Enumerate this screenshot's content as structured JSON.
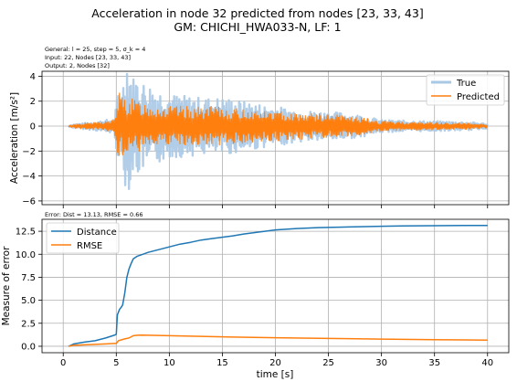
{
  "figure": {
    "title_line1": "Acceleration in node 32 predicted from nodes [23, 33, 43]",
    "title_line2": "GM: CHICHI_HWA033-N, LF: 1"
  },
  "chart_data": [
    {
      "type": "line",
      "info_line1": "General: l = 25, step = 5, σ_k = 4",
      "info_line2": "Input: 22, Nodes [23, 33, 43]",
      "info_line3": "Output: 2, Nodes [32]",
      "ylabel": "Acceleration [m/s²]",
      "xlim": [
        -2,
        42
      ],
      "ylim": [
        -6.3,
        4.4
      ],
      "yticks": [
        "4",
        "2",
        "0",
        "−2",
        "−4",
        "−6"
      ],
      "ytick_values": [
        4,
        2,
        0,
        -2,
        -4,
        -6
      ],
      "grid": true,
      "legend_position": "top-right",
      "series": [
        {
          "name": "True",
          "color": "#a8c8e4",
          "envelope": {
            "t": [
              0.5,
              1,
              2,
              3,
              4,
              4.8,
              5.2,
              5.6,
              6.0,
              6.5,
              7.0,
              7.5,
              8.0,
              8.5,
              9.0,
              10,
              11,
              12,
              13,
              14,
              15,
              16,
              17,
              18,
              19,
              20,
              22,
              24,
              26,
              28,
              30,
              32,
              35,
              38,
              40
            ],
            "amplitude": [
              0.05,
              0.15,
              0.25,
              0.35,
              0.5,
              0.6,
              3.0,
              3.5,
              5.8,
              4.0,
              4.0,
              3.6,
              3.5,
              3.2,
              3.0,
              2.6,
              2.5,
              2.4,
              2.3,
              2.3,
              2.3,
              2.2,
              2.0,
              1.9,
              1.7,
              1.6,
              1.3,
              1.2,
              1.1,
              0.9,
              0.5,
              0.45,
              0.4,
              0.35,
              0.2
            ]
          }
        },
        {
          "name": "Predicted",
          "color": "#ff7f0e",
          "envelope": {
            "t": [
              0.5,
              1,
              2,
              3,
              4,
              4.8,
              5.2,
              5.6,
              6.0,
              6.5,
              7.0,
              7.5,
              8.0,
              8.5,
              9.0,
              10,
              11,
              12,
              13,
              14,
              15,
              16,
              17,
              18,
              19,
              20,
              22,
              24,
              26,
              28,
              30,
              32,
              35,
              38,
              40
            ],
            "amplitude": [
              0.03,
              0.15,
              0.25,
              0.3,
              0.4,
              0.5,
              2.9,
              2.4,
              2.3,
              2.2,
              2.1,
              2.0,
              1.9,
              1.8,
              1.7,
              1.6,
              1.6,
              1.6,
              1.5,
              1.6,
              1.5,
              1.4,
              1.4,
              1.3,
              1.2,
              1.2,
              1.1,
              1.0,
              0.9,
              0.7,
              0.4,
              0.35,
              0.3,
              0.25,
              0.15
            ]
          }
        }
      ]
    },
    {
      "type": "line",
      "info_line1": "Error: Dist = 13.13, RMSE = 0.66",
      "xlabel": "time [s]",
      "ylabel": "Measure of error",
      "xlim": [
        -2,
        42
      ],
      "ylim": [
        -0.7,
        13.8
      ],
      "xticks": [
        0,
        5,
        10,
        15,
        20,
        25,
        30,
        35,
        40
      ],
      "yticks": [
        0.0,
        2.5,
        5.0,
        7.5,
        10.0,
        12.5
      ],
      "xtick_labels": [
        "0",
        "5",
        "10",
        "15",
        "20",
        "25",
        "30",
        "35",
        "40"
      ],
      "ytick_labels": [
        "0.0",
        "2.5",
        "5.0",
        "7.5",
        "10.0",
        "12.5"
      ],
      "grid": true,
      "legend_position": "top-left",
      "series": [
        {
          "name": "Distance",
          "color": "#1f77b4",
          "x": [
            0.5,
            1,
            2,
            3,
            4,
            4.8,
            5.0,
            5.1,
            5.3,
            5.5,
            5.6,
            5.8,
            6.0,
            6.2,
            6.4,
            6.6,
            7,
            7.5,
            8,
            9,
            10,
            11,
            12,
            13,
            14,
            15,
            16,
            17,
            18,
            19,
            20,
            22,
            24,
            26,
            28,
            30,
            32,
            35,
            38,
            40
          ],
          "y": [
            0.0,
            0.25,
            0.45,
            0.6,
            0.9,
            1.2,
            1.3,
            3.4,
            4.0,
            4.3,
            4.5,
            5.8,
            7.5,
            8.4,
            9.0,
            9.5,
            9.8,
            10.0,
            10.2,
            10.5,
            10.8,
            11.1,
            11.3,
            11.55,
            11.7,
            11.85,
            12.0,
            12.2,
            12.35,
            12.5,
            12.65,
            12.8,
            12.9,
            12.95,
            13.0,
            13.05,
            13.08,
            13.1,
            13.12,
            13.13
          ]
        },
        {
          "name": "RMSE",
          "color": "#ff7f0e",
          "x": [
            0.5,
            1,
            2,
            3,
            4,
            4.8,
            5.0,
            5.2,
            5.5,
            5.8,
            6.2,
            6.6,
            7,
            7.5,
            8,
            9,
            10,
            12,
            14,
            16,
            18,
            20,
            25,
            30,
            35,
            40
          ],
          "y": [
            0.0,
            0.1,
            0.15,
            0.2,
            0.25,
            0.3,
            0.3,
            0.6,
            0.7,
            0.8,
            0.9,
            1.15,
            1.2,
            1.22,
            1.2,
            1.18,
            1.15,
            1.1,
            1.05,
            1.0,
            0.97,
            0.93,
            0.85,
            0.78,
            0.72,
            0.66
          ]
        }
      ]
    }
  ]
}
